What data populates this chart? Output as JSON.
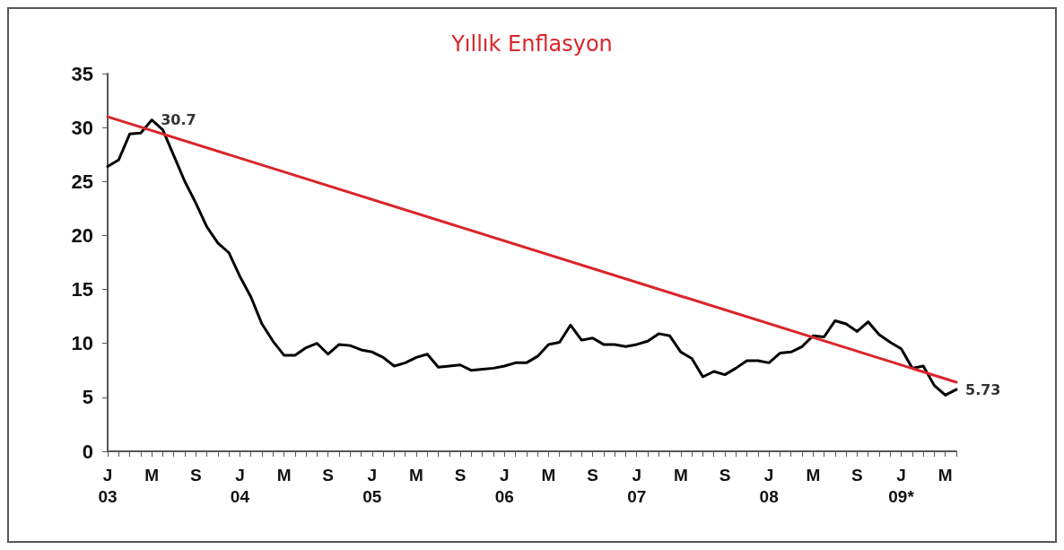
{
  "chart_data": {
    "type": "line",
    "title": "Yıllık Enflasyon",
    "categories": [
      "J\n03",
      null,
      null,
      null,
      "M",
      null,
      null,
      null,
      "S",
      null,
      null,
      null,
      "J\n04",
      null,
      null,
      null,
      "M",
      null,
      null,
      null,
      "S",
      null,
      null,
      null,
      "J\n05",
      null,
      null,
      null,
      "M",
      null,
      null,
      null,
      "S",
      null,
      null,
      null,
      "J\n06",
      null,
      null,
      null,
      "M",
      null,
      null,
      null,
      "S",
      null,
      null,
      null,
      "J\n07",
      null,
      null,
      null,
      "M",
      null,
      null,
      null,
      "S",
      null,
      null,
      null,
      "J\n08",
      null,
      null,
      null,
      "M",
      null,
      null,
      null,
      "S",
      null,
      null,
      null,
      "J\n09*",
      null,
      null,
      null,
      "M",
      null
    ],
    "series": [
      {
        "color": "#000000",
        "values": [
          26.4,
          27.0,
          29.4,
          29.5,
          30.7,
          29.8,
          27.4,
          25.0,
          23.0,
          20.8,
          19.3,
          18.4,
          16.2,
          14.3,
          11.8,
          10.2,
          8.9,
          8.9,
          9.6,
          10.0,
          9.0,
          9.9,
          9.8,
          9.4,
          9.2,
          8.7,
          7.9,
          8.2,
          8.7,
          9.0,
          7.8,
          7.9,
          8.0,
          7.5,
          7.6,
          7.7,
          7.9,
          8.2,
          8.2,
          8.8,
          9.9,
          10.1,
          11.7,
          10.3,
          10.5,
          9.9,
          9.9,
          9.7,
          9.9,
          10.2,
          10.9,
          10.7,
          9.2,
          8.6,
          6.9,
          7.4,
          7.1,
          7.7,
          8.4,
          8.4,
          8.2,
          9.1,
          9.2,
          9.7,
          10.7,
          10.6,
          12.1,
          11.8,
          11.1,
          12.0,
          10.8,
          10.1,
          9.5,
          7.7,
          7.9,
          6.1,
          5.2,
          5.73
        ],
        "value_labels": [
          null,
          null,
          null,
          null,
          "30.7",
          null,
          null,
          null,
          null,
          null,
          null,
          null,
          null,
          null,
          null,
          null,
          null,
          null,
          null,
          null,
          null,
          null,
          null,
          null,
          null,
          null,
          null,
          null,
          null,
          null,
          null,
          null,
          null,
          null,
          null,
          null,
          null,
          null,
          null,
          null,
          null,
          null,
          null,
          null,
          null,
          null,
          null,
          null,
          null,
          null,
          null,
          null,
          null,
          null,
          null,
          null,
          null,
          null,
          null,
          null,
          null,
          null,
          null,
          null,
          null,
          null,
          null,
          null,
          null,
          null,
          null,
          null,
          null,
          null,
          null,
          null,
          null,
          "5.73"
        ]
      },
      {
        "color": "#d9262b",
        "values": [
          31.0,
          null,
          null,
          null,
          null,
          null,
          null,
          null,
          null,
          null,
          null,
          null,
          null,
          null,
          null,
          null,
          null,
          null,
          null,
          null,
          null,
          null,
          null,
          null,
          null,
          null,
          null,
          null,
          null,
          null,
          null,
          null,
          null,
          null,
          null,
          null,
          null,
          null,
          null,
          null,
          null,
          null,
          null,
          null,
          null,
          null,
          null,
          null,
          null,
          null,
          null,
          null,
          null,
          null,
          null,
          null,
          null,
          null,
          null,
          null,
          null,
          null,
          null,
          null,
          null,
          null,
          null,
          null,
          null,
          null,
          null,
          null,
          null,
          null,
          null,
          null,
          null,
          6.4
        ]
      }
    ],
    "ylim": [
      0,
      35
    ],
    "yticks": [
      0,
      5,
      10,
      15,
      20,
      25,
      30,
      35
    ],
    "grid": false,
    "marker": "none",
    "line_style": "solid"
  }
}
